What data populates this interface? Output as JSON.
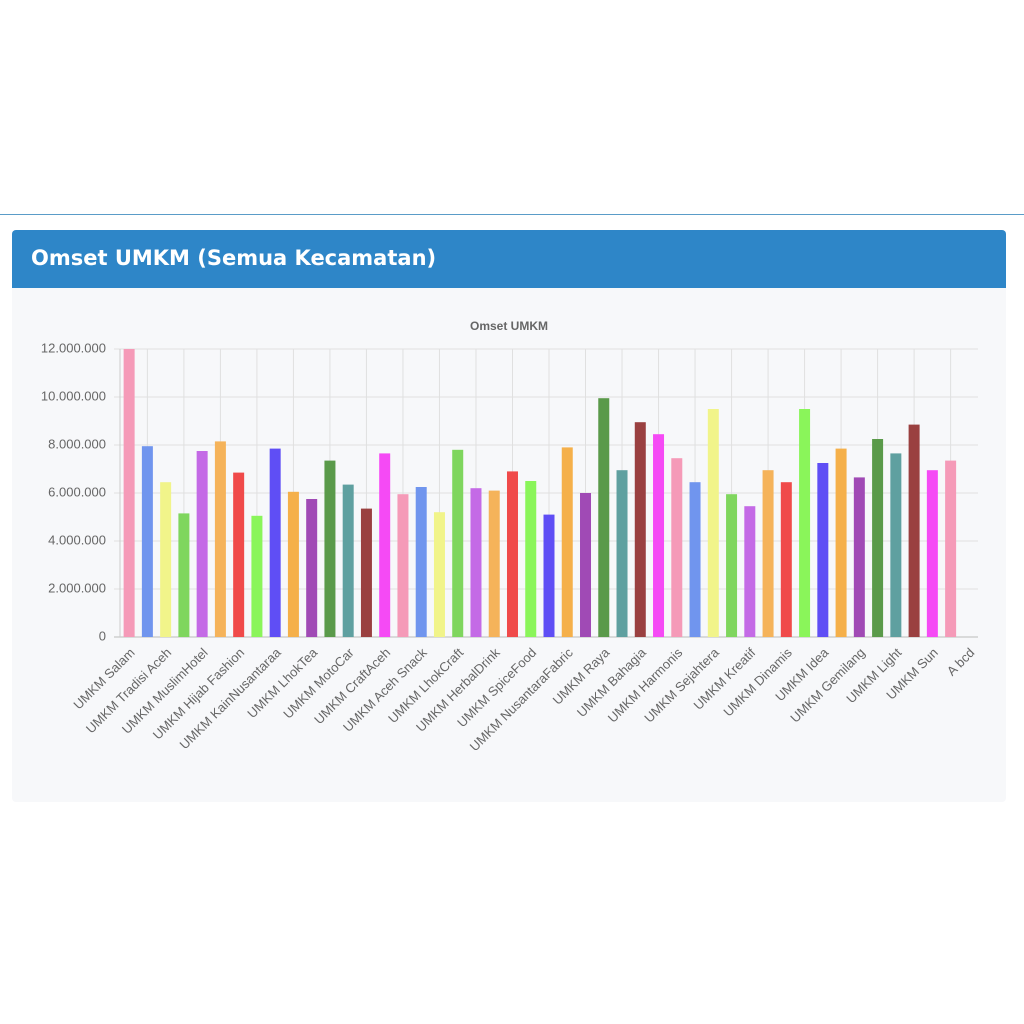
{
  "header": {
    "title": "Omset UMKM (Semua Kecamatan)"
  },
  "chart_data": {
    "type": "bar",
    "title": "Omset UMKM",
    "categories": [
      "UMKM Salam",
      null,
      "UMKM Tradisi Aceh",
      null,
      "UMKM MuslimHotel",
      null,
      "UMKM Hijab Fashion",
      null,
      "UMKM KainNusantaraa",
      null,
      "UMKM LhokTea",
      null,
      "UMKM MotoCar",
      null,
      "UMKM CraftAceh",
      null,
      "UMKM Aceh Snack",
      null,
      "UMKM LhokCraft",
      null,
      "UMKM HerbalDrink",
      null,
      "UMKM SpiceFood",
      null,
      "UMKM NusantaraFabric",
      null,
      "UMKM Raya",
      null,
      "UMKM Bahagia",
      null,
      "UMKM Harmonis",
      null,
      "UMKM Sejahtera",
      null,
      "UMKM Kreatif",
      null,
      "UMKM Dinamis",
      null,
      "UMKM Idea",
      null,
      "UMKM Gemilang",
      null,
      "UMKM Light",
      null,
      "UMKM Sun",
      null,
      "A bcd"
    ],
    "values": [
      12000000,
      7950000,
      6450000,
      5150000,
      7750000,
      8150000,
      6850000,
      5050000,
      7850000,
      6050000,
      5750000,
      7350000,
      6350000,
      5350000,
      7650000,
      5950000,
      6250000,
      5200000,
      7800000,
      6200000,
      6100000,
      6900000,
      6500000,
      5100000,
      7900000,
      6000000,
      9950000,
      6950000,
      8950000,
      8450000,
      7450000,
      6450000,
      9500000,
      5950000,
      5450000,
      6950000,
      6450000,
      9500000,
      7250000,
      7850000,
      6650000,
      8250000,
      7650000,
      8850000,
      6950000,
      7350000,
      0
    ],
    "colors": [
      "#f59ab8",
      "#7095ee",
      "#f1f48a",
      "#7fd65e",
      "#c46ae6",
      "#f5b35a",
      "#f04a4a",
      "#8af55a",
      "#5f4ef5",
      "#f5b04a",
      "#a04ab5",
      "#5a9a4a",
      "#5fa0a0",
      "#9a4040",
      "#f54af5"
    ],
    "ylim": [
      0,
      12000000
    ],
    "yticks": [
      0,
      {
        "value": 2000000,
        "label": "2.000.000"
      },
      {
        "value": 4000000,
        "label": "4.000.000"
      },
      {
        "value": 6000000,
        "label": "6.000.000"
      },
      {
        "value": 8000000,
        "label": "8.000.000"
      },
      {
        "value": 10000000,
        "label": "10.000.000"
      },
      {
        "value": 12000000,
        "label": "12.000.000"
      }
    ],
    "grid": true
  }
}
